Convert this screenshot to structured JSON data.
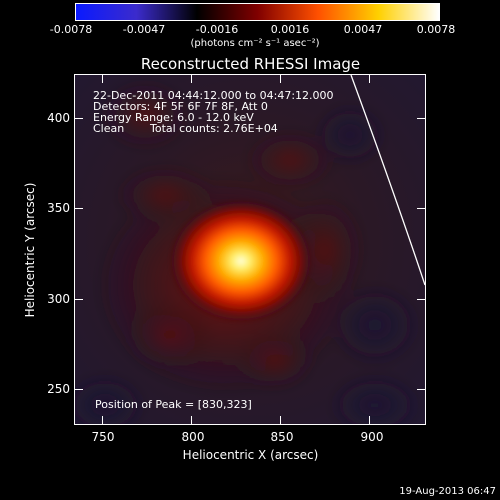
{
  "colorbar": {
    "tick_labels": [
      "-0.0078",
      "-0.0047",
      "-0.0016",
      "0.0016",
      "0.0047",
      "0.0078"
    ],
    "unit_label": "(photons cm⁻² s⁻¹ asec⁻²)",
    "colors": [
      "#0a1aff",
      "#3b2bcc",
      "#000000",
      "#800000",
      "#ff5000",
      "#ffd000",
      "#ffffff"
    ]
  },
  "plot": {
    "title": "Reconstructed RHESSI Image",
    "x_label": "Heliocentric X (arcsec)",
    "y_label": "Heliocentric Y (arcsec)",
    "x_ticks": [
      "750",
      "800",
      "850",
      "900"
    ],
    "y_ticks": [
      "250",
      "300",
      "350",
      "400"
    ],
    "x_range": [
      735,
      927
    ],
    "y_range": [
      232,
      425
    ]
  },
  "info": {
    "time_range": "22-Dec-2011 04:44:12.000 to 04:47:12.000",
    "detectors": "Detectors: 4F 5F 6F 7F 8F, Att 0",
    "energy": "Energy Range: 6.0 - 12.0 keV",
    "clean": "Clean",
    "counts": "Total counts: 2.76E+04",
    "peak": "Position of Peak = [830,323]"
  },
  "peak_position": [
    830,
    323
  ],
  "footer": {
    "timestamp": "19-Aug-2013 06:47"
  }
}
